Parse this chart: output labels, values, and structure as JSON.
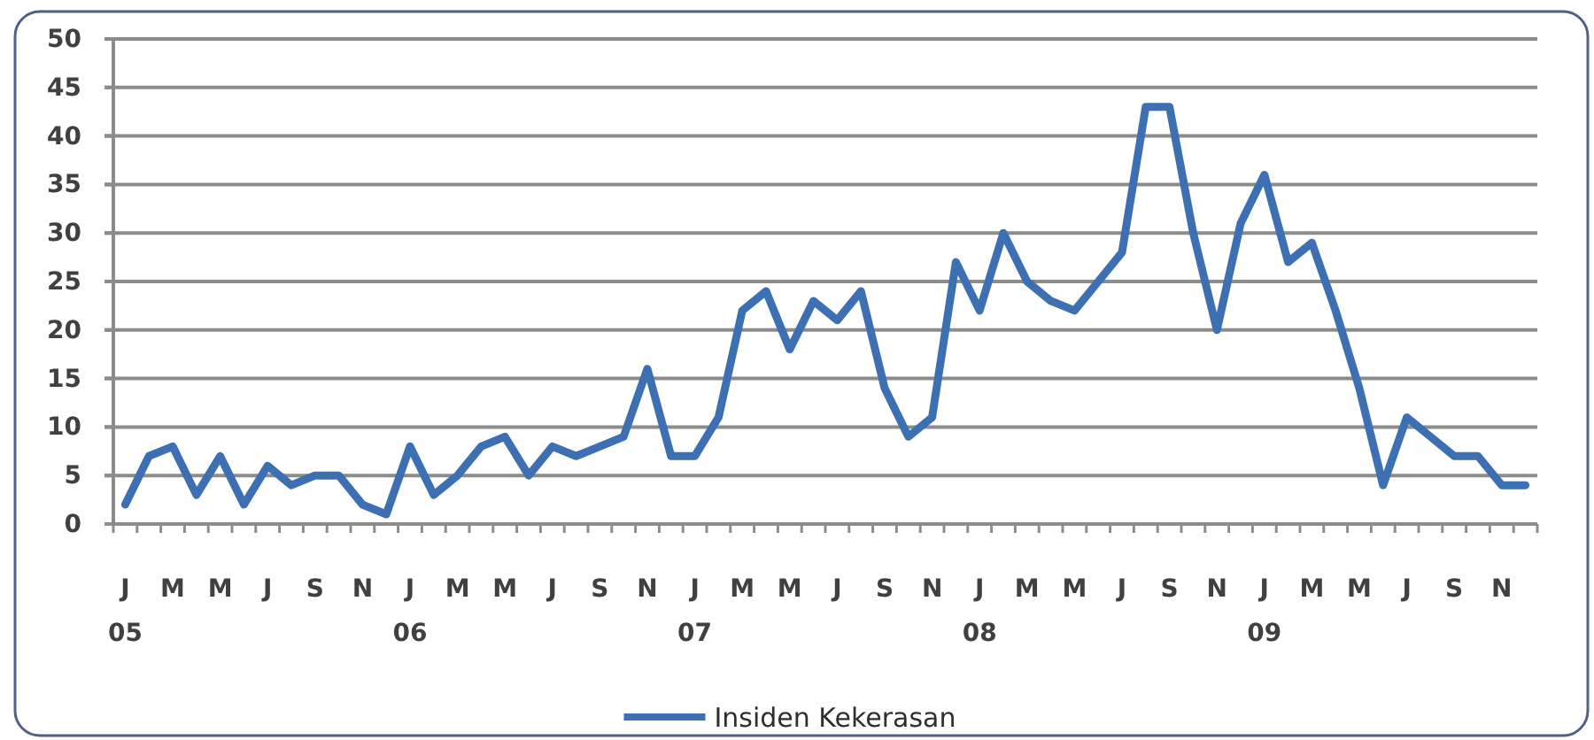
{
  "chart_data": {
    "type": "line",
    "categories": [
      "J\n05",
      null,
      "M",
      null,
      "M",
      null,
      "J",
      null,
      "S",
      null,
      "N",
      null,
      "J\n06",
      null,
      "M",
      null,
      "M",
      null,
      "J",
      null,
      "S",
      null,
      "N",
      null,
      "J\n07",
      null,
      "M",
      null,
      "M",
      null,
      "J",
      null,
      "S",
      null,
      "N",
      null,
      "J\n08",
      null,
      "M",
      null,
      "M",
      null,
      "J",
      null,
      "S",
      null,
      "N",
      null,
      "J\n09",
      null,
      "M",
      null,
      "M",
      null,
      "J",
      null,
      "S",
      null,
      "N",
      null
    ],
    "series": [
      {
        "name": "Insiden Kekerasan",
        "color": "#3d70b2",
        "values": [
          2,
          7,
          8,
          3,
          7,
          2,
          6,
          4,
          5,
          5,
          2,
          1,
          8,
          3,
          5,
          8,
          9,
          5,
          8,
          7,
          8,
          9,
          16,
          7,
          7,
          11,
          22,
          24,
          18,
          23,
          21,
          24,
          14,
          9,
          11,
          27,
          22,
          30,
          25,
          23,
          22,
          25,
          28,
          43,
          43,
          30,
          20,
          31,
          36,
          27,
          29,
          22,
          14,
          4,
          11,
          9,
          7,
          7,
          4,
          4
        ]
      }
    ],
    "ylim": [
      0,
      50
    ],
    "yticks": [
      0,
      5,
      10,
      15,
      20,
      25,
      30,
      35,
      40,
      45,
      50
    ],
    "grid": "y",
    "legend": "bottom",
    "line_style": "solid"
  }
}
